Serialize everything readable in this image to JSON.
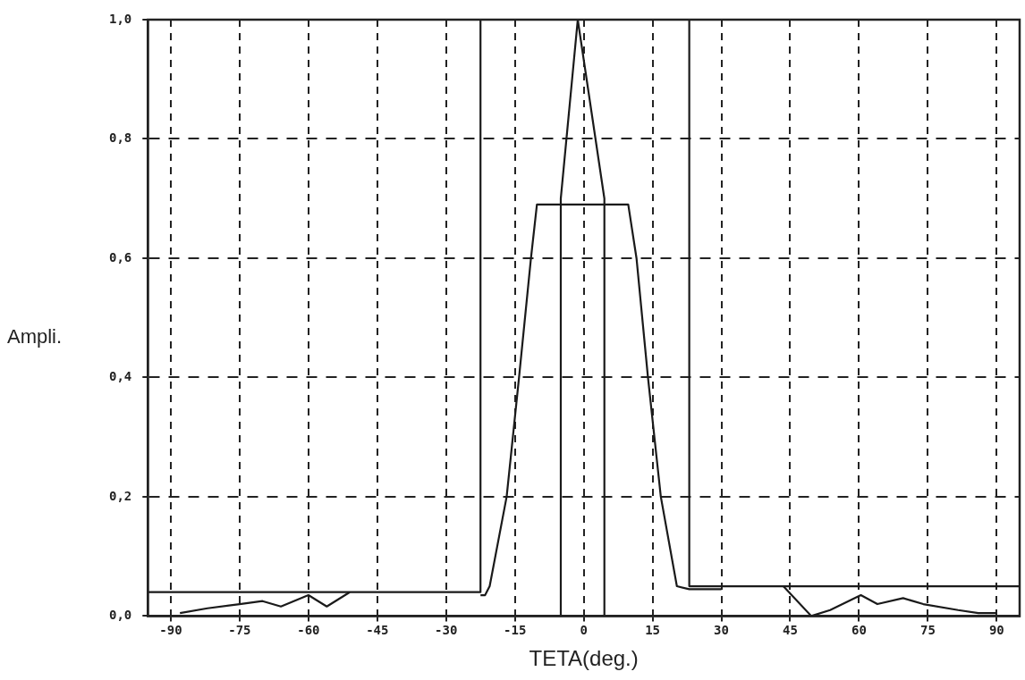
{
  "chart_data": {
    "type": "line",
    "xlabel": "TETA(deg.)",
    "ylabel": "Ampli.",
    "xlim": [
      -95,
      95
    ],
    "xticks": [
      -90,
      -75,
      -60,
      -45,
      -30,
      -15,
      0,
      15,
      30,
      45,
      60,
      75,
      90
    ],
    "ylim": [
      0,
      1
    ],
    "yticks": [
      {
        "value": 0,
        "label": "0,0"
      },
      {
        "value": 0.2,
        "label": "0,2"
      },
      {
        "value": 0.4,
        "label": "0,4"
      },
      {
        "value": 0.6,
        "label": "0,6"
      },
      {
        "value": 0.8,
        "label": "0,8"
      },
      {
        "value": 1,
        "label": "1,0"
      }
    ],
    "grid": true,
    "legend": false,
    "marker": "none",
    "line_style": "solid",
    "series": [
      {
        "color": "#1a1a1a",
        "x": [
          -95,
          -22.5,
          -22.5,
          23,
          23,
          95
        ],
        "values": [
          0.04,
          0.04,
          1,
          1,
          0.05,
          0.05
        ]
      },
      {
        "color": "#1a1a1a",
        "x": [
          -22.5,
          -21.5,
          -20.5,
          -16.8,
          -14.1,
          -11.5,
          -10.2,
          9.7,
          11.5,
          14,
          16.8,
          20.3,
          23,
          30
        ],
        "values": [
          0.035,
          0.035,
          0.05,
          0.2,
          0.4,
          0.6,
          0.69,
          0.69,
          0.6,
          0.4,
          0.2,
          0.05,
          0.045,
          0.045
        ]
      },
      {
        "color": "#1a1a1a",
        "x": [
          -5,
          -5,
          -1.3,
          4.5,
          4.5
        ],
        "values": [
          0,
          0.7,
          1,
          0.7,
          0
        ]
      },
      {
        "color": "#1a1a1a",
        "x": [
          -88,
          -82,
          -75,
          -70,
          -66,
          -60,
          -56,
          -51
        ],
        "values": [
          0.005,
          0.013,
          0.02,
          0.025,
          0.016,
          0.035,
          0.016,
          0.04
        ]
      },
      {
        "color": "#1a1a1a",
        "x": [
          43.5,
          49.6,
          53.7,
          60.4,
          64,
          69.6,
          74,
          81.6,
          86,
          90
        ],
        "values": [
          0.05,
          0,
          0.01,
          0.035,
          0.02,
          0.03,
          0.02,
          0.01,
          0.005,
          0.005
        ]
      }
    ]
  }
}
